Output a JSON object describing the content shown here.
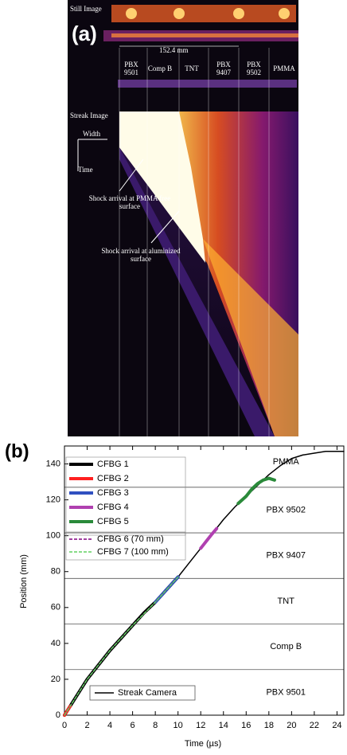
{
  "panel_a": {
    "label": "(a)",
    "still_image": "Still Image",
    "scale": "152.4 mm",
    "materials": [
      "PBX 9501",
      "Comp B",
      "TNT",
      "PBX 9407",
      "PBX 9502",
      "PMMA"
    ],
    "streak_image": "Streak Image",
    "width": "Width",
    "time": "Time",
    "annotations": [
      "Shock arrival at PMMA free surface",
      "Shock arrival at aluminized surface"
    ]
  },
  "chart_data": {
    "type": "line",
    "label": "(b)",
    "xlabel": "Time (µs)",
    "ylabel": "Position (mm)",
    "xlim": [
      0,
      24.6
    ],
    "ylim": [
      0,
      150
    ],
    "xticks": [
      0,
      2,
      4,
      6,
      8,
      10,
      12,
      14,
      16,
      18,
      20,
      22,
      24
    ],
    "yticks": [
      0,
      20,
      40,
      60,
      80,
      100,
      120,
      140
    ],
    "hlines": [
      25.4,
      50.8,
      76.2,
      101.6,
      127
    ],
    "region_labels": [
      "PBX 9501",
      "Comp B",
      "TNT",
      "PBX 9407",
      "PBX 9502",
      "PMMA"
    ],
    "legend": "upper left",
    "series": [
      {
        "name": "CFBG 1",
        "color": "#000000",
        "linestyle": "solid",
        "width": 4,
        "x": [
          0,
          1,
          2,
          3,
          4,
          5,
          6,
          7,
          8,
          9,
          10
        ],
        "values": [
          0,
          10,
          20,
          28,
          36,
          43,
          50,
          57,
          63,
          70,
          77
        ]
      },
      {
        "name": "CFBG 2",
        "color": "#ff2020",
        "linestyle": "solid",
        "width": 4,
        "x": [
          0,
          0.5
        ],
        "values": [
          0,
          5
        ]
      },
      {
        "name": "CFBG 3",
        "color": "#3050c0",
        "linestyle": "solid",
        "width": 4,
        "x": [
          8,
          9,
          10
        ],
        "values": [
          63,
          70,
          77
        ]
      },
      {
        "name": "CFBG 4",
        "color": "#b040b0",
        "linestyle": "solid",
        "width": 4,
        "x": [
          12,
          12.5,
          13,
          13.4
        ],
        "values": [
          93,
          97,
          101,
          104
        ]
      },
      {
        "name": "CFBG 5",
        "color": "#2a8a3a",
        "linestyle": "solid",
        "width": 4,
        "x": [
          15.3,
          16,
          16.5,
          17,
          17.5,
          18,
          18.5
        ],
        "values": [
          118,
          122,
          126,
          129,
          131,
          132,
          131
        ]
      },
      {
        "name": "CFBG 6 (70 mm)",
        "color": "#800080",
        "linestyle": "dashed",
        "width": 1.5,
        "x": [
          0,
          2,
          4,
          6,
          8,
          10
        ],
        "values": [
          0,
          20,
          36,
          50,
          63,
          77
        ]
      },
      {
        "name": "CFBG 7 (100 mm)",
        "color": "#60d060",
        "linestyle": "dashed",
        "width": 1.5,
        "x": [
          0,
          2,
          4,
          6,
          8,
          10
        ],
        "values": [
          0,
          20,
          36,
          50,
          63,
          77
        ]
      },
      {
        "name": "Streak Camera",
        "color": "#000000",
        "linestyle": "solid",
        "width": 1.5,
        "legend": "lower left",
        "x": [
          0,
          1,
          2,
          3,
          4,
          5,
          6,
          7,
          8,
          9,
          10,
          11,
          12,
          13,
          14,
          15,
          16,
          17,
          18,
          19,
          20,
          21,
          22,
          23,
          24,
          24.6
        ],
        "values": [
          0,
          10,
          20,
          28,
          36,
          43,
          50,
          57,
          63,
          70,
          77,
          85,
          93,
          101,
          109,
          116,
          122,
          128,
          134,
          139,
          143,
          145,
          146,
          147,
          147,
          147
        ]
      }
    ]
  }
}
